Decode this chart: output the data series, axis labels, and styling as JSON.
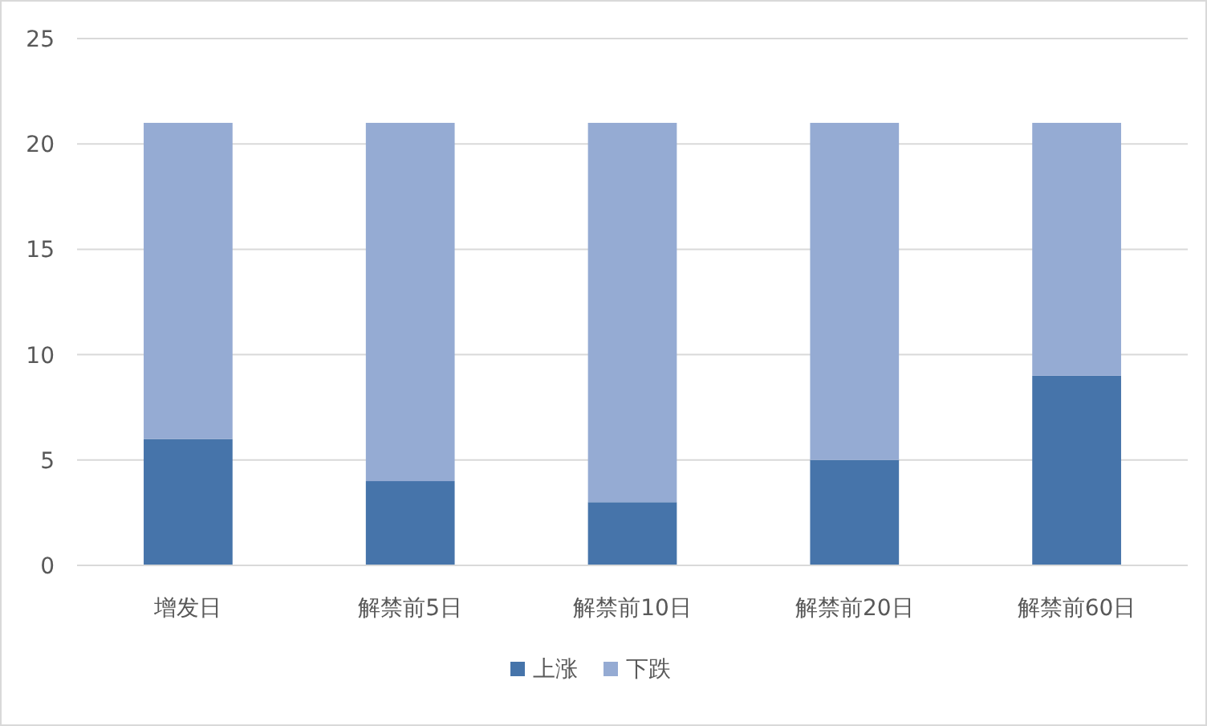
{
  "chart_data": {
    "type": "bar",
    "stacked": true,
    "categories": [
      "增发日",
      "解禁前5日",
      "解禁前10日",
      "解禁前20日",
      "解禁前60日"
    ],
    "ylim": [
      0,
      25
    ],
    "yticks": [
      0,
      5,
      10,
      15,
      20,
      25
    ],
    "grid": "y",
    "legend": "bottom",
    "series": [
      {
        "name": "上涨",
        "color": "#4674aa",
        "values": [
          6,
          4,
          3,
          5,
          9
        ]
      },
      {
        "name": "下跌",
        "color": "#95abd3",
        "values": [
          15,
          17,
          18,
          16,
          12
        ]
      }
    ]
  }
}
